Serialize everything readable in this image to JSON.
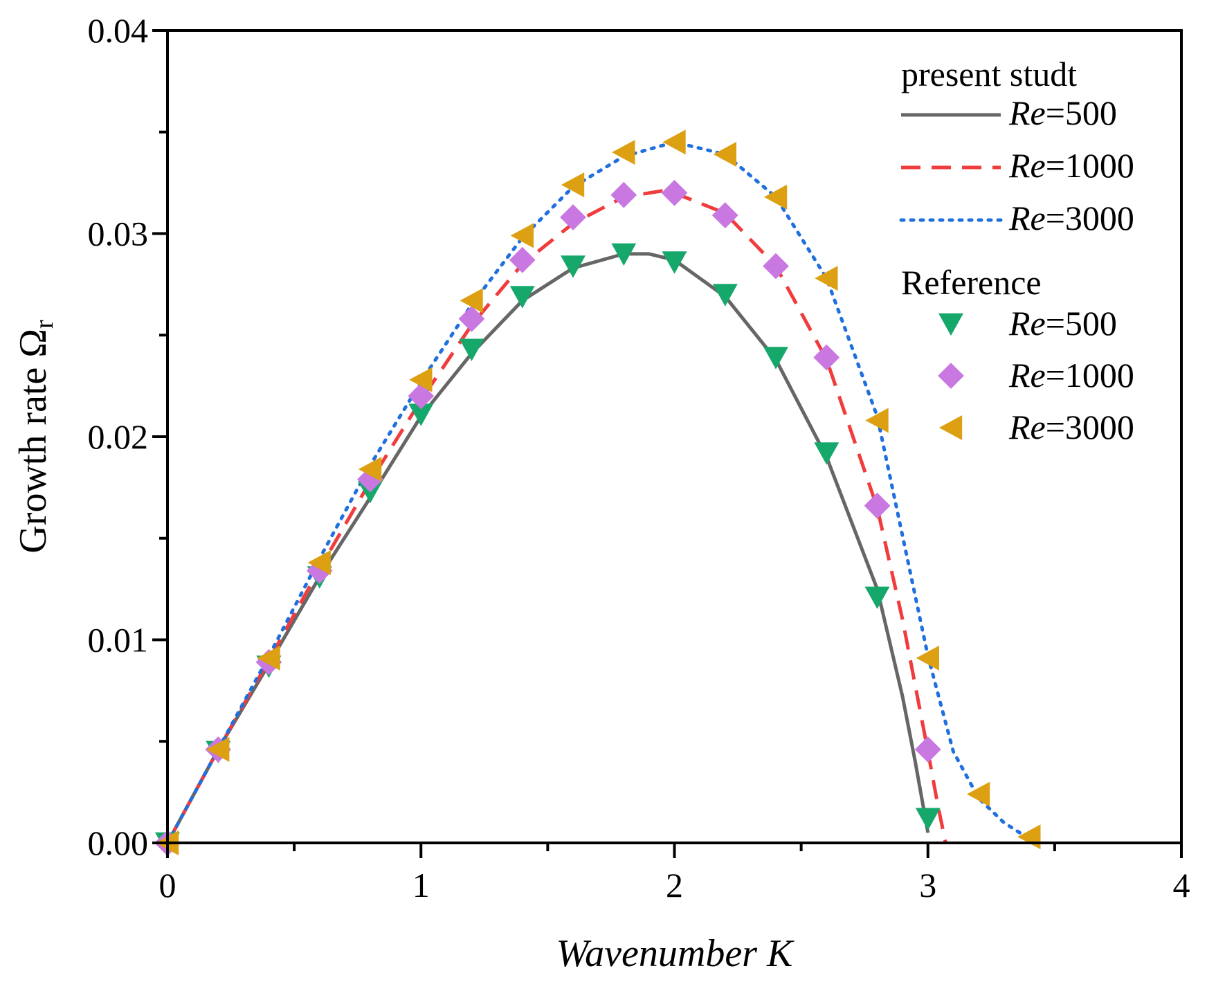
{
  "chart_data": {
    "type": "line",
    "xlabel": "Wavenumber K",
    "ylabel": "Growth rate Ω",
    "ylabel_subscript": "r",
    "xlim": [
      0,
      4
    ],
    "ylim": [
      0,
      0.04
    ],
    "x_ticks": [
      0,
      1,
      2,
      3,
      4
    ],
    "x_tick_labels": [
      "0",
      "1",
      "2",
      "3",
      "4"
    ],
    "y_ticks": [
      0,
      0.01,
      0.02,
      0.03,
      0.04
    ],
    "y_tick_labels": [
      "0.00",
      "0.01",
      "0.02",
      "0.03",
      "0.04"
    ],
    "legend_position": "top-right",
    "legend": {
      "line_group_title": "present studt",
      "marker_group_title": "Reference",
      "re_prefix": "Re"
    },
    "line_series": [
      {
        "name": "Re=500",
        "re_label": "Re",
        "value_label": "=500",
        "color": "#666666",
        "dash": "solid",
        "x": [
          0,
          0.2,
          0.4,
          0.6,
          0.8,
          1.0,
          1.2,
          1.4,
          1.6,
          1.8,
          1.9,
          2.0,
          2.2,
          2.4,
          2.6,
          2.8,
          2.9,
          2.95,
          3.0
        ],
        "y": [
          0,
          0.0046,
          0.0088,
          0.0131,
          0.017,
          0.021,
          0.0241,
          0.0267,
          0.0283,
          0.029,
          0.029,
          0.0287,
          0.0269,
          0.0238,
          0.019,
          0.0125,
          0.0072,
          0.004,
          0.0005
        ]
      },
      {
        "name": "Re=1000",
        "re_label": "Re",
        "value_label": "=1000",
        "color": "#f03c3c",
        "dash": "dashed",
        "x": [
          0,
          0.2,
          0.4,
          0.6,
          0.8,
          1.0,
          1.2,
          1.4,
          1.6,
          1.8,
          1.95,
          2.0,
          2.2,
          2.4,
          2.6,
          2.8,
          2.9,
          3.0,
          3.04,
          3.07
        ],
        "y": [
          0,
          0.0046,
          0.009,
          0.0135,
          0.0178,
          0.0218,
          0.0255,
          0.0285,
          0.0305,
          0.0318,
          0.0321,
          0.032,
          0.031,
          0.0284,
          0.0238,
          0.0165,
          0.011,
          0.0045,
          0.0018,
          0.0
        ]
      },
      {
        "name": "Re=3000",
        "re_label": "Re",
        "value_label": "=3000",
        "color": "#1f6fde",
        "dash": "dotted",
        "x": [
          0,
          0.2,
          0.4,
          0.6,
          0.8,
          1.0,
          1.2,
          1.4,
          1.6,
          1.8,
          2.0,
          2.2,
          2.4,
          2.6,
          2.8,
          3.0,
          3.1,
          3.2,
          3.3,
          3.4,
          3.42
        ],
        "y": [
          0,
          0.0046,
          0.0092,
          0.014,
          0.0186,
          0.0227,
          0.0265,
          0.0298,
          0.0323,
          0.0338,
          0.0345,
          0.0339,
          0.0318,
          0.0278,
          0.021,
          0.0092,
          0.0045,
          0.0022,
          0.001,
          0.0002,
          0.0
        ]
      }
    ],
    "marker_series": [
      {
        "name": "Re=500",
        "re_label": "Re",
        "value_label": "=500",
        "color": "#16a86b",
        "marker": "triangle-down",
        "x": [
          0,
          0.2,
          0.4,
          0.6,
          0.8,
          1.0,
          1.2,
          1.4,
          1.6,
          1.8,
          2.0,
          2.2,
          2.4,
          2.6,
          2.8,
          3.0
        ],
        "y": [
          0,
          0.0045,
          0.0087,
          0.0131,
          0.0173,
          0.0211,
          0.0243,
          0.0269,
          0.0284,
          0.029,
          0.0286,
          0.027,
          0.0239,
          0.0192,
          0.0121,
          0.0012
        ]
      },
      {
        "name": "Re=1000",
        "re_label": "Re",
        "value_label": "=1000",
        "color": "#c878e0",
        "marker": "diamond",
        "x": [
          0,
          0.2,
          0.4,
          0.6,
          0.8,
          1.0,
          1.2,
          1.4,
          1.6,
          1.8,
          2.0,
          2.2,
          2.4,
          2.6,
          2.8,
          3.0
        ],
        "y": [
          0,
          0.0046,
          0.0089,
          0.0134,
          0.0179,
          0.022,
          0.0258,
          0.0287,
          0.0308,
          0.0319,
          0.032,
          0.0309,
          0.0284,
          0.0239,
          0.0166,
          0.0046
        ]
      },
      {
        "name": "Re=3000",
        "re_label": "Re",
        "value_label": "=3000",
        "color": "#dda012",
        "marker": "triangle-left",
        "x": [
          0,
          0.2,
          0.4,
          0.6,
          0.8,
          1.0,
          1.2,
          1.4,
          1.6,
          1.8,
          2.0,
          2.2,
          2.4,
          2.6,
          2.8,
          3.0,
          3.2,
          3.4
        ],
        "y": [
          0,
          0.0046,
          0.0091,
          0.0138,
          0.0184,
          0.0228,
          0.0267,
          0.0299,
          0.0324,
          0.034,
          0.0345,
          0.0339,
          0.0318,
          0.0278,
          0.0208,
          0.0091,
          0.0024,
          0.0003
        ]
      }
    ]
  }
}
